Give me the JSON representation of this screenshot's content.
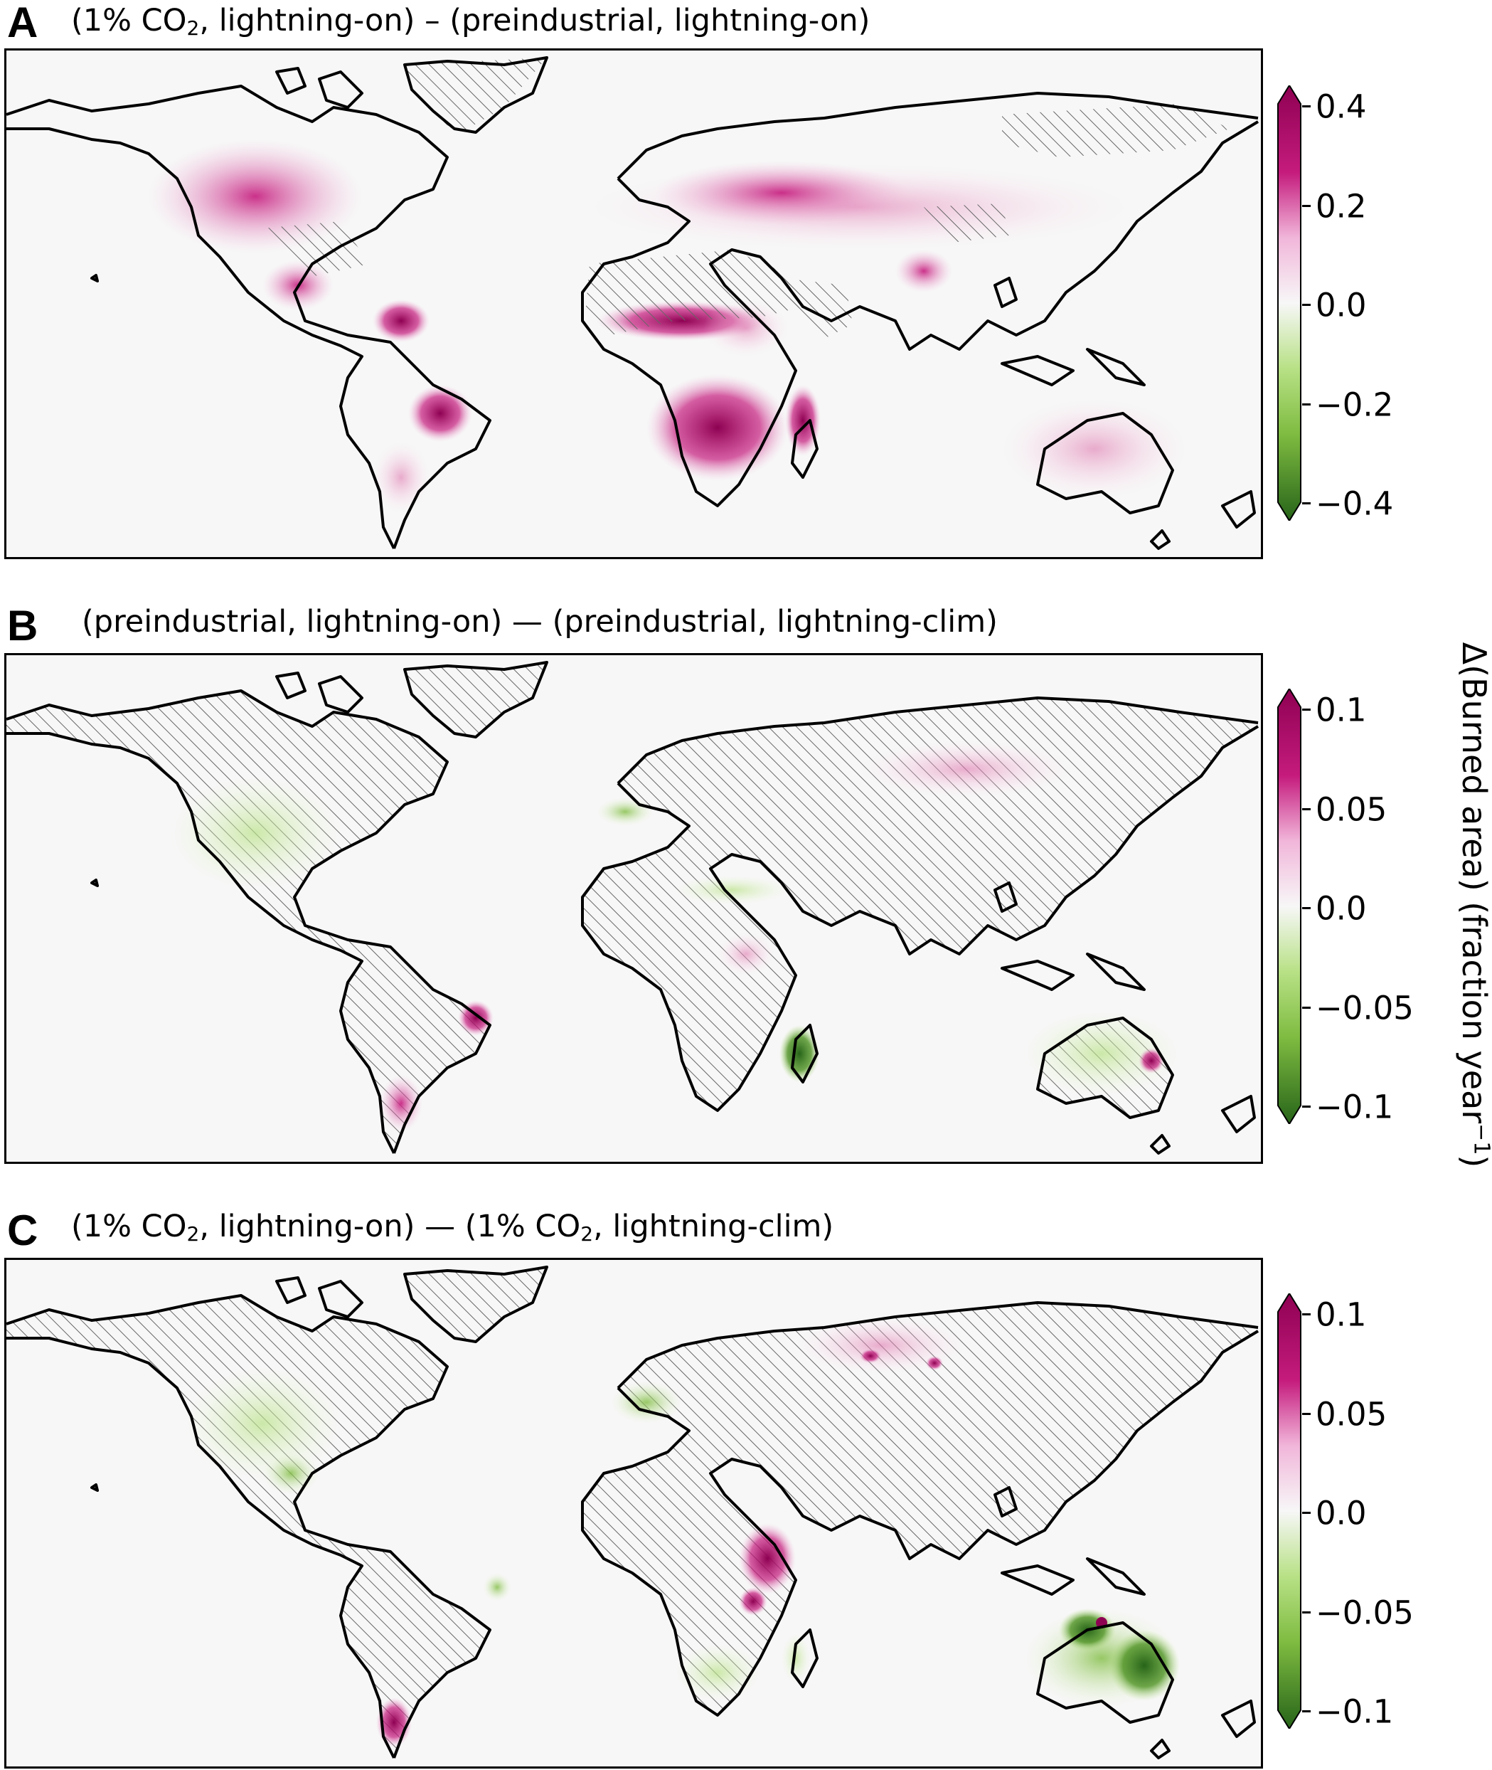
{
  "colorbar_title": "Δ(Burned area) (fraction year",
  "colorbar_title_exp": "−1",
  "colorbar_title_close": ")",
  "colors": {
    "max_pink": "#8e0152",
    "mid_pink": "#de77ae",
    "light_pink": "#fde0ef",
    "neutral": "#f7f7f7",
    "light_green": "#e6f5d0",
    "mid_green": "#7fbc41",
    "max_green": "#276419",
    "hatch": "#555555",
    "coast": "#000000"
  },
  "panels": [
    {
      "letter": "A",
      "title_parts": [
        "(1% CO",
        "2",
        ", lightning-on) – (preindustrial, lightning-on)"
      ],
      "ticks": [
        "0.4",
        "0.2",
        "0.0",
        "−0.2",
        "−0.4"
      ],
      "hatch_regions": [
        "greenland",
        "sahara",
        "arabia",
        "tibet"
      ],
      "anomalies": [
        {
          "region": "Western United States",
          "sign": "positive",
          "level": "moderate"
        },
        {
          "region": "Mexico",
          "sign": "positive",
          "level": "strong"
        },
        {
          "region": "Sahel",
          "sign": "positive",
          "level": "strong"
        },
        {
          "region": "Southern Africa",
          "sign": "positive",
          "level": "very strong"
        },
        {
          "region": "Madagascar",
          "sign": "positive",
          "level": "strong"
        },
        {
          "region": "Brazil",
          "sign": "positive",
          "level": "strong"
        },
        {
          "region": "Central Asia",
          "sign": "positive",
          "level": "moderate"
        },
        {
          "region": "Australia",
          "sign": "positive",
          "level": "moderate"
        },
        {
          "region": "India",
          "sign": "positive",
          "level": "moderate"
        }
      ]
    },
    {
      "letter": "B",
      "title_parts": [
        "(preindustrial, lightning-on) — (preindustrial, lightning-clim)",
        "",
        ""
      ],
      "ticks": [
        "0.1",
        "0.05",
        "0.0",
        "−0.05",
        "−0.1"
      ],
      "hatch_regions": [
        "most land"
      ],
      "anomalies": [
        {
          "region": "Western United States",
          "sign": "negative",
          "level": "weak"
        },
        {
          "region": "Madagascar",
          "sign": "negative",
          "level": "strong"
        },
        {
          "region": "Australia",
          "sign": "negative",
          "level": "weak"
        },
        {
          "region": "Southern Brazil",
          "sign": "positive",
          "level": "strong"
        },
        {
          "region": "Patagonia",
          "sign": "positive",
          "level": "moderate"
        },
        {
          "region": "Central Asia",
          "sign": "positive",
          "level": "weak"
        }
      ]
    },
    {
      "letter": "C",
      "title_parts": [
        "(1% CO",
        "2",
        ", lightning-on) — (1% CO",
        "2",
        ", lightning-clim)"
      ],
      "ticks": [
        "0.1",
        "0.05",
        "0.0",
        "−0.05",
        "−0.1"
      ],
      "hatch_regions": [
        "most land"
      ],
      "anomalies": [
        {
          "region": "Australia",
          "sign": "negative",
          "level": "very strong"
        },
        {
          "region": "Western United States",
          "sign": "negative",
          "level": "weak"
        },
        {
          "region": "East Africa",
          "sign": "positive",
          "level": "strong"
        },
        {
          "region": "Patagonia",
          "sign": "positive",
          "level": "strong"
        },
        {
          "region": "Siberia",
          "sign": "positive",
          "level": "moderate"
        },
        {
          "region": "Southern Africa",
          "sign": "negative",
          "level": "weak"
        }
      ]
    }
  ]
}
